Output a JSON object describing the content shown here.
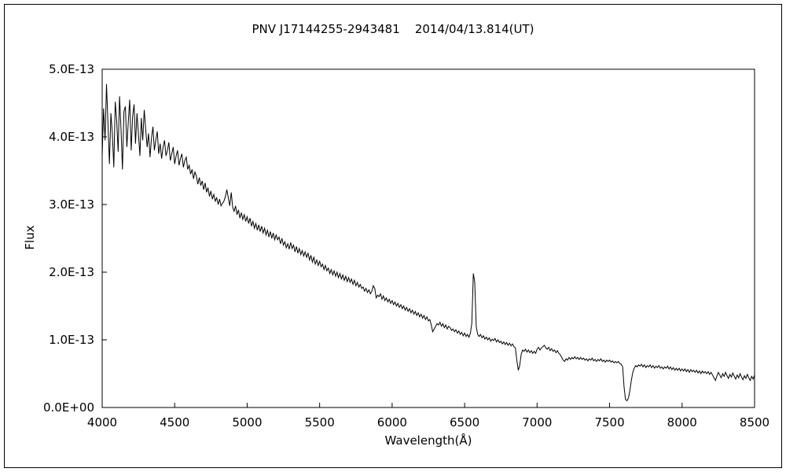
{
  "chart_data": {
    "type": "line",
    "title": "PNV J17144255-2943481    2014/04/13.814(UT)",
    "xlabel": "Wavelength(Å)",
    "ylabel": "Flux",
    "grid": false,
    "legend": "none",
    "line_color": "#000000",
    "background_color": "#ffffff",
    "xlim": [
      4000,
      8500
    ],
    "ylim_1e13": [
      0,
      5
    ],
    "flux_unit": "erg-like flux, values in units of 1e-13; y axis spans 0.0E+00 to 5.0E-13",
    "x_ticks": [
      {
        "value": 4000,
        "label": "4000"
      },
      {
        "value": 4500,
        "label": "4500"
      },
      {
        "value": 5000,
        "label": "5000"
      },
      {
        "value": 5500,
        "label": "5500"
      },
      {
        "value": 6000,
        "label": "6000"
      },
      {
        "value": 6500,
        "label": "6500"
      },
      {
        "value": 7000,
        "label": "7000"
      },
      {
        "value": 7500,
        "label": "7500"
      },
      {
        "value": 8000,
        "label": "8000"
      },
      {
        "value": 8500,
        "label": "8500"
      }
    ],
    "y_ticks": [
      {
        "value": 0,
        "label": "0.0E+00"
      },
      {
        "value": 1,
        "label": "1.0E-13"
      },
      {
        "value": 2,
        "label": "2.0E-13"
      },
      {
        "value": 3,
        "label": "3.0E-13"
      },
      {
        "value": 4,
        "label": "4.0E-13"
      },
      {
        "value": 5,
        "label": "5.0E-13"
      }
    ],
    "x_start": 4000,
    "x_step": 10,
    "flux_1e13": [
      3.72,
      4.42,
      3.95,
      4.78,
      4.18,
      3.6,
      4.35,
      4.05,
      3.55,
      4.52,
      4.25,
      3.78,
      4.6,
      4.1,
      3.52,
      4.38,
      4.45,
      3.85,
      4.22,
      4.55,
      3.8,
      4.3,
      4.48,
      3.9,
      4.35,
      4.05,
      3.72,
      4.28,
      3.95,
      4.4,
      4.12,
      3.85,
      4.05,
      3.7,
      3.98,
      4.15,
      3.8,
      3.95,
      4.08,
      3.75,
      3.9,
      3.68,
      3.85,
      3.95,
      3.72,
      3.8,
      3.92,
      3.65,
      3.75,
      3.85,
      3.6,
      3.72,
      3.8,
      3.58,
      3.68,
      3.75,
      3.55,
      3.65,
      3.7,
      3.52,
      3.58,
      3.45,
      3.52,
      3.38,
      3.48,
      3.42,
      3.3,
      3.4,
      3.28,
      3.35,
      3.22,
      3.32,
      3.18,
      3.25,
      3.12,
      3.2,
      3.08,
      3.15,
      3.05,
      3.1,
      3.0,
      3.08,
      2.98,
      3.02,
      3.05,
      3.12,
      3.22,
      3.1,
      2.98,
      3.18,
      2.96,
      2.9,
      2.98,
      2.85,
      2.92,
      2.8,
      2.88,
      2.78,
      2.85,
      2.75,
      2.82,
      2.72,
      2.8,
      2.68,
      2.75,
      2.65,
      2.72,
      2.62,
      2.7,
      2.6,
      2.68,
      2.58,
      2.65,
      2.55,
      2.62,
      2.52,
      2.6,
      2.5,
      2.58,
      2.48,
      2.55,
      2.48,
      2.52,
      2.42,
      2.5,
      2.4,
      2.45,
      2.36,
      2.42,
      2.34,
      2.44,
      2.35,
      2.4,
      2.3,
      2.38,
      2.28,
      2.35,
      2.26,
      2.32,
      2.24,
      2.3,
      2.22,
      2.28,
      2.18,
      2.25,
      2.15,
      2.22,
      2.12,
      2.18,
      2.1,
      2.16,
      2.08,
      2.12,
      2.04,
      2.1,
      2.02,
      2.06,
      1.98,
      2.04,
      1.96,
      2.02,
      1.94,
      2.0,
      1.92,
      1.98,
      1.9,
      1.96,
      1.88,
      1.94,
      1.86,
      1.92,
      1.85,
      1.9,
      1.82,
      1.88,
      1.8,
      1.85,
      1.78,
      1.82,
      1.76,
      1.78,
      1.72,
      1.76,
      1.7,
      1.74,
      1.68,
      1.72,
      1.8,
      1.76,
      1.62,
      1.66,
      1.64,
      1.68,
      1.6,
      1.65,
      1.58,
      1.62,
      1.56,
      1.6,
      1.54,
      1.58,
      1.52,
      1.56,
      1.5,
      1.54,
      1.48,
      1.52,
      1.46,
      1.5,
      1.44,
      1.48,
      1.42,
      1.46,
      1.4,
      1.44,
      1.38,
      1.42,
      1.36,
      1.4,
      1.34,
      1.38,
      1.32,
      1.36,
      1.3,
      1.34,
      1.28,
      1.3,
      1.22,
      1.12,
      1.16,
      1.2,
      1.24,
      1.22,
      1.26,
      1.2,
      1.24,
      1.18,
      1.22,
      1.16,
      1.2,
      1.18,
      1.14,
      1.16,
      1.12,
      1.15,
      1.1,
      1.13,
      1.08,
      1.11,
      1.06,
      1.1,
      1.05,
      1.08,
      1.04,
      1.1,
      1.25,
      1.98,
      1.85,
      1.2,
      1.08,
      1.05,
      1.08,
      1.03,
      1.06,
      1.01,
      1.04,
      1.0,
      1.03,
      0.98,
      1.01,
      0.99,
      1.02,
      0.97,
      1.0,
      0.96,
      0.98,
      0.94,
      0.97,
      0.93,
      0.96,
      0.92,
      0.95,
      0.91,
      0.94,
      0.9,
      0.88,
      0.7,
      0.55,
      0.62,
      0.78,
      0.85,
      0.83,
      0.86,
      0.82,
      0.85,
      0.81,
      0.84,
      0.8,
      0.83,
      0.8,
      0.86,
      0.89,
      0.85,
      0.88,
      0.9,
      0.92,
      0.88,
      0.86,
      0.89,
      0.84,
      0.87,
      0.83,
      0.85,
      0.81,
      0.84,
      0.8,
      0.78,
      0.74,
      0.7,
      0.68,
      0.72,
      0.7,
      0.74,
      0.71,
      0.74,
      0.72,
      0.75,
      0.72,
      0.74,
      0.71,
      0.74,
      0.71,
      0.73,
      0.7,
      0.72,
      0.69,
      0.72,
      0.7,
      0.73,
      0.69,
      0.71,
      0.68,
      0.71,
      0.69,
      0.72,
      0.68,
      0.7,
      0.67,
      0.7,
      0.68,
      0.7,
      0.67,
      0.69,
      0.66,
      0.68,
      0.66,
      0.68,
      0.65,
      0.64,
      0.6,
      0.3,
      0.12,
      0.1,
      0.14,
      0.25,
      0.4,
      0.52,
      0.58,
      0.62,
      0.6,
      0.63,
      0.61,
      0.64,
      0.6,
      0.63,
      0.59,
      0.62,
      0.6,
      0.63,
      0.59,
      0.62,
      0.58,
      0.61,
      0.59,
      0.62,
      0.58,
      0.6,
      0.57,
      0.6,
      0.58,
      0.61,
      0.57,
      0.6,
      0.56,
      0.59,
      0.55,
      0.58,
      0.55,
      0.58,
      0.54,
      0.57,
      0.54,
      0.57,
      0.53,
      0.56,
      0.52,
      0.56,
      0.53,
      0.55,
      0.52,
      0.55,
      0.51,
      0.54,
      0.5,
      0.54,
      0.51,
      0.53,
      0.5,
      0.53,
      0.49,
      0.52,
      0.48,
      0.44,
      0.4,
      0.46,
      0.52,
      0.48,
      0.44,
      0.5,
      0.46,
      0.52,
      0.47,
      0.43,
      0.49,
      0.45,
      0.51,
      0.46,
      0.42,
      0.48,
      0.44,
      0.5,
      0.45,
      0.41,
      0.47,
      0.43,
      0.49,
      0.44,
      0.4,
      0.46,
      0.42,
      0.48
    ]
  }
}
